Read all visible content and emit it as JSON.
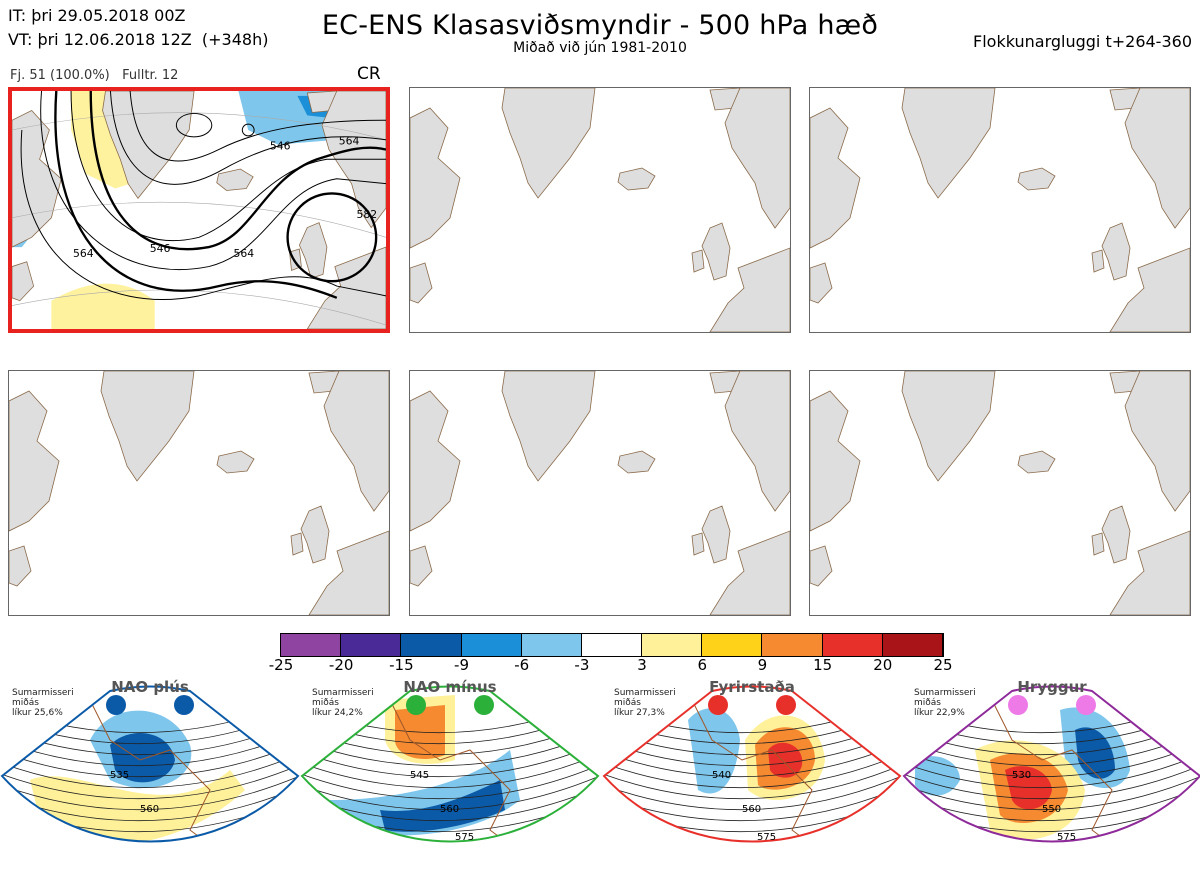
{
  "header": {
    "it_line": "IT: þri 29.05.2018 00Z",
    "vt_line": "VT: þri 12.06.2018 12Z  (+348h)",
    "title": "EC-ENS Klasasviðsmyndir - 500 hPa hæð",
    "subtitle": "Miðað við jún 1981-2010",
    "window": "Flokkunargluggi t+264-360"
  },
  "panel": {
    "info": "Fj. 51 (100.0%)   Fulltr. 12",
    "regime_code": "CR",
    "contour_labels": [
      "546",
      "564",
      "546",
      "564",
      "582",
      "564"
    ]
  },
  "colorscale": {
    "ticks": [
      "-25",
      "-20",
      "-15",
      "-9",
      "-6",
      "-3",
      "3",
      "6",
      "9",
      "15",
      "20",
      "25"
    ],
    "colors": [
      "#8e44a0",
      "#4a2a96",
      "#0b5aa8",
      "#1b8fd8",
      "#7ec6ec",
      "#ffffff",
      "#fff19a",
      "#ffd21a",
      "#f58a30",
      "#e8302a",
      "#a81418"
    ]
  },
  "regimes": [
    {
      "name": "NAO plús",
      "info": "Sumarmisseri\nmiðás\nlíkur 25,6%",
      "frame_color": "#0b5aa8",
      "dot_color": "#0b5aa8",
      "labels": [
        "535",
        "560"
      ]
    },
    {
      "name": "NAO mínus",
      "info": "Sumarmisseri\nmiðás\nlíkur 24,2%",
      "frame_color": "#2bb03a",
      "dot_color": "#2bb03a",
      "labels": [
        "545",
        "560",
        "575"
      ]
    },
    {
      "name": "Fyrirstaða",
      "info": "Sumarmisseri\nmiðás\nlíkur 27,3%",
      "frame_color": "#e8302a",
      "dot_color": "#e8302a",
      "labels": [
        "540",
        "560",
        "575"
      ]
    },
    {
      "name": "Hryggur",
      "info": "Sumarmisseri\nmiðás\nlíkur 22,9%",
      "frame_color": "#8e2a9a",
      "dot_color": "#ee7ae8",
      "labels": [
        "530",
        "550",
        "575"
      ]
    }
  ]
}
